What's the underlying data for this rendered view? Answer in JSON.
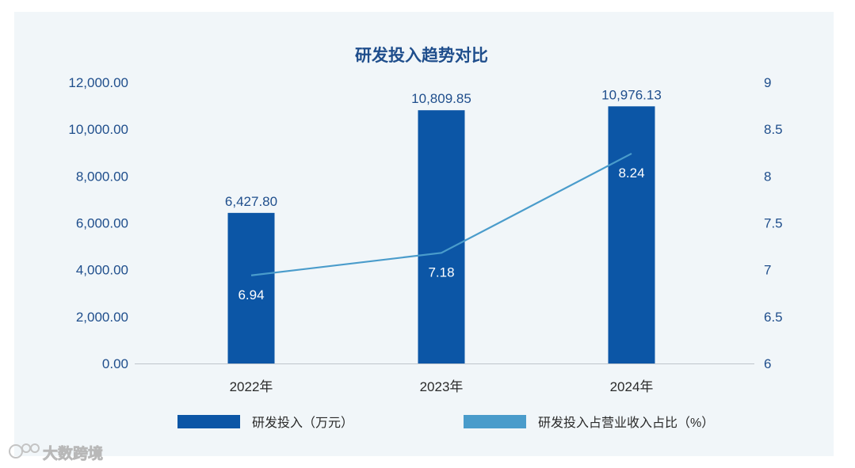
{
  "chart_data": {
    "type": "bar",
    "title": "研发投入趋势对比",
    "categories": [
      "2022年",
      "2023年",
      "2024年"
    ],
    "series": [
      {
        "name": "研发投入（万元）",
        "type": "bar",
        "axis": "left",
        "values": [
          6427.8,
          10809.85,
          10976.13
        ],
        "labels": [
          "6,427.80",
          "10,809.85",
          "10,976.13"
        ],
        "color": "#0c56a6"
      },
      {
        "name": "研发投入占营业收入占比（%）",
        "type": "line",
        "axis": "right",
        "values": [
          6.94,
          7.18,
          8.24
        ],
        "labels": [
          "6.94",
          "7.18",
          "8.24"
        ],
        "color": "#4a9ccb"
      }
    ],
    "y_left": {
      "ylim": [
        0,
        12000
      ],
      "ticks": [
        0,
        2000,
        4000,
        6000,
        8000,
        10000,
        12000
      ],
      "tick_labels": [
        "0.00",
        "2,000.00",
        "4,000.00",
        "6,000.00",
        "8,000.00",
        "10,000.00",
        "12,000.00"
      ]
    },
    "y_right": {
      "ylim": [
        6,
        9
      ],
      "ticks": [
        6,
        6.5,
        7,
        7.5,
        8,
        8.5,
        9
      ],
      "tick_labels": [
        "6",
        "6.5",
        "7",
        "7.5",
        "8",
        "8.5",
        "9"
      ]
    },
    "grid": false,
    "legend_position": "bottom"
  },
  "watermark": "大数跨境"
}
